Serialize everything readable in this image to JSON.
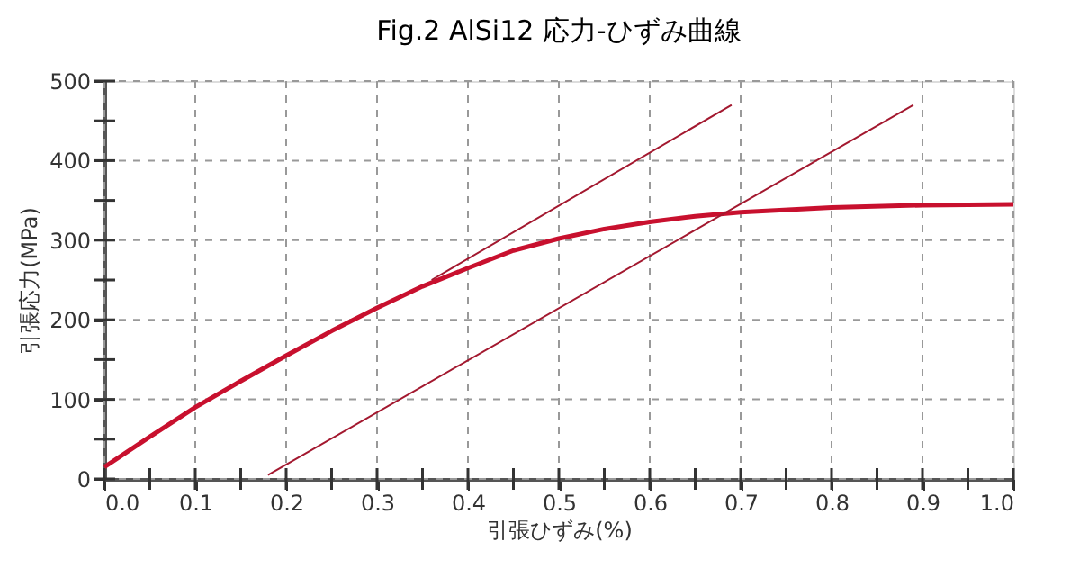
{
  "chart_data": {
    "type": "line",
    "title": "Fig.2 AlSi12 応力-ひずみ曲線",
    "xlabel": "引張ひずみ(%)",
    "ylabel": "引張応力(MPa)",
    "xlim": [
      0,
      1.0
    ],
    "ylim": [
      0,
      500
    ],
    "xticks": [
      {
        "value": 0,
        "label": "0.0"
      },
      {
        "value": 0.05,
        "label": null
      },
      {
        "value": 0.1,
        "label": "0.1"
      },
      {
        "value": 0.15,
        "label": null
      },
      {
        "value": 0.2,
        "label": "0.2"
      },
      {
        "value": 0.25,
        "label": null
      },
      {
        "value": 0.3,
        "label": "0.3"
      },
      {
        "value": 0.35,
        "label": null
      },
      {
        "value": 0.4,
        "label": "0.4"
      },
      {
        "value": 0.45,
        "label": null
      },
      {
        "value": 0.5,
        "label": "0.5"
      },
      {
        "value": 0.55,
        "label": null
      },
      {
        "value": 0.6,
        "label": "0.6"
      },
      {
        "value": 0.65,
        "label": null
      },
      {
        "value": 0.7,
        "label": "0.7"
      },
      {
        "value": 0.75,
        "label": null
      },
      {
        "value": 0.8,
        "label": "0.8"
      },
      {
        "value": 0.85,
        "label": null
      },
      {
        "value": 0.9,
        "label": "0.9"
      },
      {
        "value": 0.95,
        "label": null
      },
      {
        "value": 1.0,
        "label": "1.0"
      }
    ],
    "yticks": [
      0,
      {
        "value": 50,
        "label": null
      },
      100,
      {
        "value": 150,
        "label": null
      },
      200,
      {
        "value": 250,
        "label": null
      },
      300,
      {
        "value": 350,
        "label": null
      },
      400,
      {
        "value": 450,
        "label": null
      },
      500
    ],
    "grid": true,
    "series": [
      {
        "color": "#c8102e",
        "x": [
          0,
          0.05,
          0.1,
          0.15,
          0.2,
          0.25,
          0.3,
          0.35,
          0.4,
          0.45,
          0.5,
          0.55,
          0.6,
          0.65,
          0.7,
          0.8,
          0.9,
          1.0
        ],
        "values": [
          15,
          53,
          90,
          123,
          155,
          186,
          215,
          242,
          265,
          287,
          302,
          314,
          323,
          330,
          335,
          341,
          344,
          345
        ]
      },
      {
        "color": "#a3182f",
        "x": [
          0.36,
          0.69
        ],
        "values": [
          250,
          470
        ]
      },
      {
        "color": "#a3182f",
        "x": [
          0.18,
          0.89
        ],
        "values": [
          5,
          470
        ]
      }
    ]
  }
}
